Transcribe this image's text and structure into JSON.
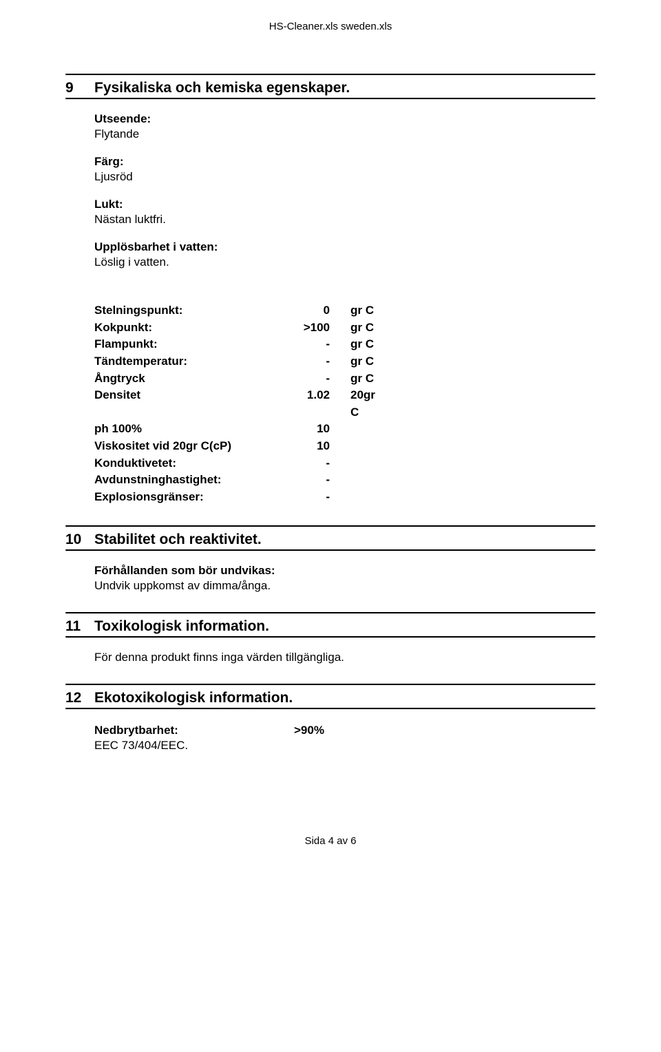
{
  "header": "HS-Cleaner.xls sweden.xls",
  "sections": {
    "s9": {
      "number": "9",
      "title": "Fysikaliska och kemiska egenskaper.",
      "groups": [
        {
          "label": "Utseende:",
          "value": "Flytande"
        },
        {
          "label": "Färg:",
          "value": "Ljusröd"
        },
        {
          "label": "Lukt:",
          "value": "Nästan luktfri."
        },
        {
          "label": "Upplösbarhet i vatten:",
          "value": "Löslig i vatten."
        }
      ],
      "props": [
        {
          "label": "Stelningspunkt:",
          "val": "0",
          "unit": "gr C"
        },
        {
          "label": "Kokpunkt:",
          "val": ">100",
          "unit": "gr C"
        },
        {
          "label": "Flampunkt:",
          "val": "-",
          "unit": "gr C"
        },
        {
          "label": "Tändtemperatur:",
          "val": "-",
          "unit": "gr C"
        },
        {
          "label": "Ångtryck",
          "val": "-",
          "unit": "gr C"
        },
        {
          "label": "Densitet",
          "val": "1.02",
          "unit": "20gr C"
        },
        {
          "label": "ph 100%",
          "val": "10",
          "unit": ""
        },
        {
          "label": "Viskositet vid 20gr C(cP)",
          "val": "10",
          "unit": ""
        },
        {
          "label": "Konduktivetet:",
          "val": "-",
          "unit": ""
        },
        {
          "label": "Avdunstninghastighet:",
          "val": "-",
          "unit": ""
        },
        {
          "label": "Explosionsgränser:",
          "val": "-",
          "unit": ""
        }
      ]
    },
    "s10": {
      "number": "10",
      "title": "Stabilitet och reaktivitet.",
      "sub_label": "Förhållanden som bör undvikas:",
      "sub_value": "Undvik uppkomst av dimma/ånga."
    },
    "s11": {
      "number": "11",
      "title": "Toxikologisk information.",
      "body": "För denna produkt finns inga värden tillgängliga."
    },
    "s12": {
      "number": "12",
      "title": "Ekotoxikologisk information.",
      "prop_label": "Nedbrytbarhet:",
      "prop_value": ">90%",
      "extra": "EEC 73/404/EEC."
    }
  },
  "footer": "Sida 4 av 6"
}
